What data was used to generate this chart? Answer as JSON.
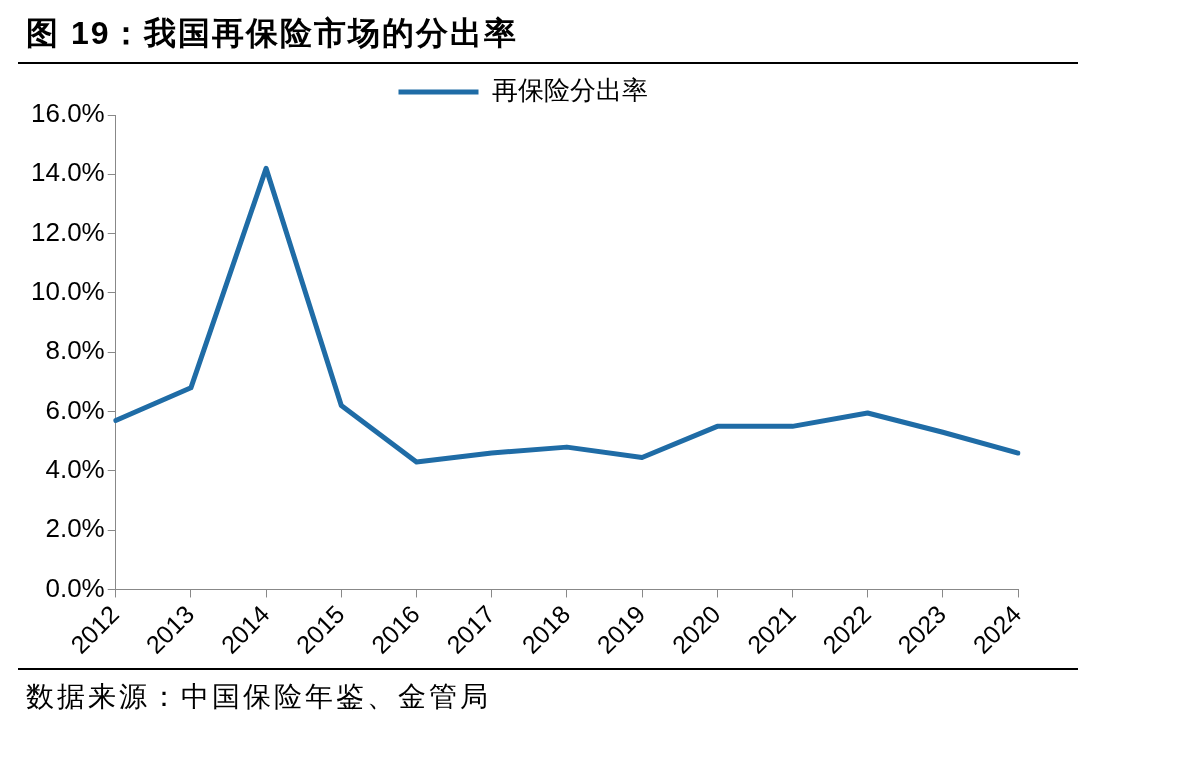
{
  "chart_data": {
    "type": "line",
    "title": "图 19：我国再保险市场的分出率",
    "categories": [
      "2012",
      "2013",
      "2014",
      "2015",
      "2016",
      "2017",
      "2018",
      "2019",
      "2020",
      "2021",
      "2022",
      "2023",
      "2024"
    ],
    "series": [
      {
        "name": "再保险分出率",
        "color": "#1f6ca6",
        "values": [
          5.7,
          6.8,
          14.2,
          6.2,
          4.3,
          4.6,
          4.8,
          4.45,
          5.5,
          5.5,
          5.95,
          5.3,
          4.6
        ]
      }
    ],
    "ylim": [
      0,
      16
    ],
    "yticks": [
      {
        "value": 0,
        "label": "0.0%"
      },
      {
        "value": 2,
        "label": "2.0%"
      },
      {
        "value": 4,
        "label": "4.0%"
      },
      {
        "value": 6,
        "label": "6.0%"
      },
      {
        "value": 8,
        "label": "8.0%"
      },
      {
        "value": 10,
        "label": "10.0%"
      },
      {
        "value": 12,
        "label": "12.0%"
      },
      {
        "value": 14,
        "label": "14.0%"
      },
      {
        "value": 16,
        "label": "16.0%"
      }
    ],
    "grid": false,
    "legend": "top",
    "marker": "none",
    "line_style": "solid",
    "annotations": [
      "数据来源：中国保险年鉴、金管局"
    ]
  }
}
